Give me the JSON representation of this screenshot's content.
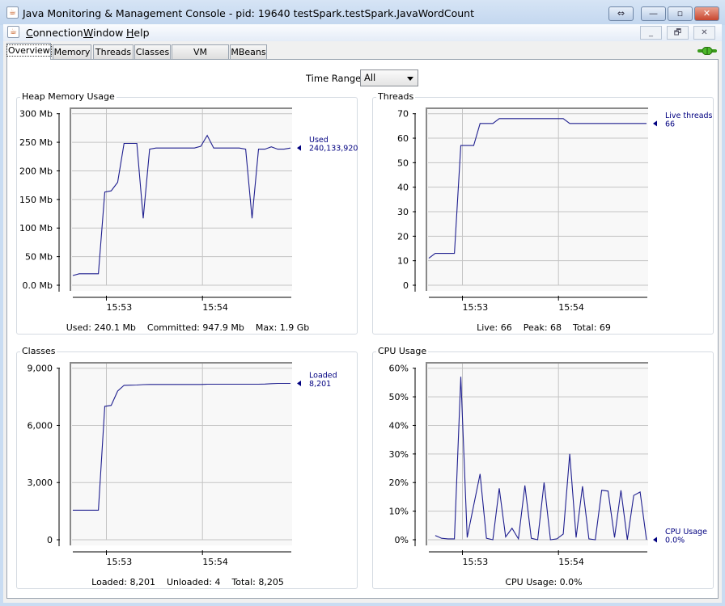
{
  "window": {
    "title": "Java Monitoring & Management Console - pid: 19640 testSpark.testSpark.JavaWordCount",
    "buttons": {
      "restore_label": "⇔",
      "minimize_label": "—",
      "maximize_label": "▫",
      "close_label": "✕"
    }
  },
  "menu": [
    {
      "label": "Connection",
      "mnemonic": "C"
    },
    {
      "label": "Window",
      "mnemonic": "W"
    },
    {
      "label": "Help",
      "mnemonic": "H"
    }
  ],
  "mdi_buttons": {
    "minimize": "_",
    "restore": "🗗",
    "close": "✕"
  },
  "tabs": [
    {
      "label": "Overview",
      "active": true
    },
    {
      "label": "Memory"
    },
    {
      "label": "Threads"
    },
    {
      "label": "Classes"
    },
    {
      "label": "VM Summary"
    },
    {
      "label": "MBeans"
    }
  ],
  "connection_icon": "connected-plug-icon",
  "time_range": {
    "label": "Time Range:",
    "value": "All"
  },
  "colors": {
    "series": "#1f1f8f",
    "legend_text": "#000080",
    "grid": "#c4c4c4",
    "plot_bg": "#f8f8f8"
  },
  "chart_data": [
    {
      "type": "line",
      "title": "Heap Memory Usage",
      "x_ticks": [
        "15:53",
        "15:54"
      ],
      "xlim": [
        "15:52:37",
        "15:54:56"
      ],
      "y_ticks": [
        "0.0 Mb",
        "50 Mb",
        "100 Mb",
        "150 Mb",
        "200 Mb",
        "250 Mb",
        "300 Mb"
      ],
      "ylim": [
        0,
        300
      ],
      "y_unit": "Mb",
      "grid": true,
      "legend": {
        "label": "Used",
        "value": "240,133,920"
      },
      "footer": "Used: 240.1 Mb    Committed: 947.9 Mb    Max: 1.9 Gb",
      "x": [
        "15:52:39",
        "15:52:43",
        "15:52:47",
        "15:52:51",
        "15:52:55",
        "15:52:59",
        "15:53:03",
        "15:53:07",
        "15:53:11",
        "15:53:15",
        "15:53:19",
        "15:53:23",
        "15:53:27",
        "15:53:31",
        "15:53:35",
        "15:53:39",
        "15:53:43",
        "15:53:47",
        "15:53:51",
        "15:53:55",
        "15:53:59",
        "15:54:03",
        "15:54:07",
        "15:54:11",
        "15:54:15",
        "15:54:19",
        "15:54:23",
        "15:54:27",
        "15:54:31",
        "15:54:35",
        "15:54:39",
        "15:54:43",
        "15:54:47",
        "15:54:51",
        "15:54:55"
      ],
      "values": [
        17,
        20,
        20,
        20,
        20,
        163,
        165,
        180,
        248,
        248,
        248,
        117,
        238,
        240,
        240,
        240,
        240,
        240,
        240,
        240,
        243,
        262,
        240,
        240,
        240,
        240,
        240,
        238,
        117,
        238,
        238,
        242,
        238,
        238,
        240
      ]
    },
    {
      "type": "line",
      "title": "Threads",
      "x_ticks": [
        "15:53",
        "15:54"
      ],
      "xlim": [
        "15:52:37",
        "15:54:56"
      ],
      "y_ticks": [
        "0",
        "10",
        "20",
        "30",
        "40",
        "50",
        "60",
        "70"
      ],
      "ylim": [
        0,
        70
      ],
      "grid": true,
      "legend": {
        "label": "Live threads",
        "value": "66"
      },
      "footer": "Live: 66    Peak: 68    Total: 69",
      "x": [
        "15:52:39",
        "15:52:43",
        "15:52:47",
        "15:52:51",
        "15:52:55",
        "15:52:59",
        "15:53:03",
        "15:53:07",
        "15:53:11",
        "15:53:15",
        "15:53:19",
        "15:53:23",
        "15:53:27",
        "15:53:31",
        "15:53:35",
        "15:53:39",
        "15:53:43",
        "15:53:47",
        "15:53:51",
        "15:53:55",
        "15:53:59",
        "15:54:03",
        "15:54:07",
        "15:54:11",
        "15:54:15",
        "15:54:19",
        "15:54:23",
        "15:54:27",
        "15:54:31",
        "15:54:35",
        "15:54:39",
        "15:54:43",
        "15:54:47",
        "15:54:51",
        "15:54:55"
      ],
      "values": [
        11,
        13,
        13,
        13,
        13,
        57,
        57,
        57,
        66,
        66,
        66,
        68,
        68,
        68,
        68,
        68,
        68,
        68,
        68,
        68,
        68,
        68,
        66,
        66,
        66,
        66,
        66,
        66,
        66,
        66,
        66,
        66,
        66,
        66,
        66
      ]
    },
    {
      "type": "line",
      "title": "Classes",
      "x_ticks": [
        "15:53",
        "15:54"
      ],
      "xlim": [
        "15:52:37",
        "15:54:56"
      ],
      "y_ticks": [
        "0",
        "3,000",
        "6,000",
        "9,000"
      ],
      "ylim": [
        0,
        9000
      ],
      "grid": true,
      "legend": {
        "label": "Loaded",
        "value": "8,201"
      },
      "footer": "Loaded: 8,201    Unloaded: 4    Total: 8,205",
      "x": [
        "15:52:39",
        "15:52:43",
        "15:52:47",
        "15:52:51",
        "15:52:55",
        "15:52:59",
        "15:53:03",
        "15:53:07",
        "15:53:11",
        "15:53:15",
        "15:53:19",
        "15:53:23",
        "15:53:27",
        "15:53:31",
        "15:53:35",
        "15:53:39",
        "15:53:43",
        "15:53:47",
        "15:53:51",
        "15:53:55",
        "15:53:59",
        "15:54:03",
        "15:54:07",
        "15:54:11",
        "15:54:15",
        "15:54:19",
        "15:54:23",
        "15:54:27",
        "15:54:31",
        "15:54:35",
        "15:54:39",
        "15:54:43",
        "15:54:47",
        "15:54:51",
        "15:54:55"
      ],
      "values": [
        1550,
        1550,
        1550,
        1550,
        1550,
        7000,
        7050,
        7800,
        8100,
        8110,
        8120,
        8140,
        8150,
        8150,
        8150,
        8150,
        8150,
        8150,
        8150,
        8150,
        8150,
        8160,
        8160,
        8160,
        8160,
        8160,
        8160,
        8160,
        8160,
        8160,
        8170,
        8190,
        8201,
        8201,
        8201
      ]
    },
    {
      "type": "line",
      "title": "CPU Usage",
      "x_ticks": [
        "15:53",
        "15:54"
      ],
      "xlim": [
        "15:52:37",
        "15:54:56"
      ],
      "y_ticks": [
        "0%",
        "10%",
        "20%",
        "30%",
        "40%",
        "50%",
        "60%"
      ],
      "ylim": [
        0,
        60
      ],
      "y_unit": "%",
      "grid": true,
      "legend": {
        "label": "CPU Usage",
        "value": "0.0%"
      },
      "footer": "CPU Usage: 0.0%",
      "x": [
        "15:52:43",
        "15:52:47",
        "15:52:51",
        "15:52:55",
        "15:52:59",
        "15:53:03",
        "15:53:07",
        "15:53:11",
        "15:53:15",
        "15:53:19",
        "15:53:23",
        "15:53:27",
        "15:53:31",
        "15:53:35",
        "15:53:39",
        "15:53:43",
        "15:53:47",
        "15:53:51",
        "15:53:55",
        "15:53:59",
        "15:54:03",
        "15:54:07",
        "15:54:11",
        "15:54:15",
        "15:54:19",
        "15:54:23",
        "15:54:27",
        "15:54:31",
        "15:54:35",
        "15:54:39",
        "15:54:43",
        "15:54:47",
        "15:54:51",
        "15:54:55"
      ],
      "values": [
        1.5,
        0.5,
        0.3,
        0.3,
        57,
        0.8,
        12,
        23,
        0.5,
        0,
        18,
        1,
        4,
        0.3,
        19,
        0.5,
        0,
        20,
        0,
        0.3,
        2,
        30,
        0.8,
        18.7,
        0.3,
        0,
        17.3,
        17,
        0.8,
        17.3,
        0,
        15.5,
        16.7,
        0
      ]
    }
  ]
}
